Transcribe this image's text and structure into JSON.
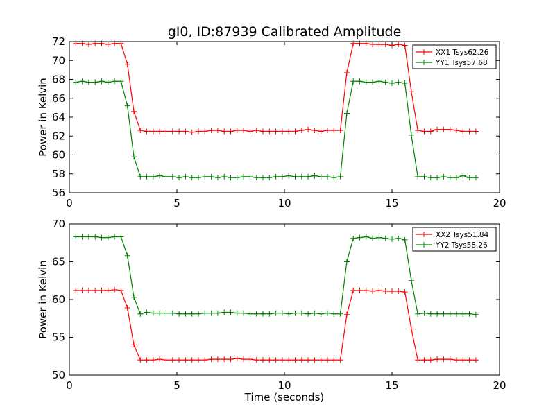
{
  "title": "gI0, ID:87939 Calibrated Amplitude",
  "colors": {
    "xx": "#ff0000",
    "yy": "#008000"
  },
  "chart_data": [
    {
      "type": "line",
      "xlabel": "",
      "ylabel": "Power in Kelvin",
      "xlim": [
        0,
        20
      ],
      "ylim": [
        56,
        72
      ],
      "xticks": [
        0,
        5,
        10,
        15,
        20
      ],
      "yticks": [
        56,
        58,
        60,
        62,
        64,
        66,
        68,
        70,
        72
      ],
      "legend_position": "top-right",
      "grid": false,
      "x": [
        0.3,
        0.6,
        0.9,
        1.2,
        1.5,
        1.8,
        2.1,
        2.4,
        2.7,
        3.0,
        3.3,
        3.6,
        3.9,
        4.2,
        4.5,
        4.8,
        5.1,
        5.4,
        5.7,
        6.0,
        6.3,
        6.6,
        6.9,
        7.2,
        7.5,
        7.8,
        8.1,
        8.4,
        8.7,
        9.0,
        9.3,
        9.6,
        9.9,
        10.2,
        10.5,
        10.8,
        11.1,
        11.4,
        11.7,
        12.0,
        12.3,
        12.6,
        12.9,
        13.2,
        13.5,
        13.8,
        14.1,
        14.4,
        14.7,
        15.0,
        15.3,
        15.6,
        15.9,
        16.2,
        16.5,
        16.8,
        17.1,
        17.4,
        17.7,
        18.0,
        18.3,
        18.6,
        18.9
      ],
      "series": [
        {
          "name": "XX1 Tsys62.26",
          "color": "#ff0000",
          "values": [
            71.8,
            71.8,
            71.7,
            71.8,
            71.8,
            71.7,
            71.8,
            71.8,
            69.6,
            64.6,
            62.6,
            62.5,
            62.5,
            62.5,
            62.5,
            62.5,
            62.5,
            62.5,
            62.4,
            62.5,
            62.5,
            62.6,
            62.6,
            62.5,
            62.5,
            62.6,
            62.6,
            62.5,
            62.6,
            62.5,
            62.5,
            62.5,
            62.5,
            62.5,
            62.5,
            62.6,
            62.7,
            62.6,
            62.5,
            62.6,
            62.6,
            62.6,
            68.7,
            71.8,
            71.8,
            71.8,
            71.7,
            71.7,
            71.7,
            71.6,
            71.7,
            71.6,
            66.7,
            62.6,
            62.5,
            62.5,
            62.7,
            62.7,
            62.7,
            62.6,
            62.5,
            62.5,
            62.5
          ]
        },
        {
          "name": "YY1 Tsys57.68",
          "color": "#008000",
          "values": [
            67.7,
            67.8,
            67.7,
            67.7,
            67.8,
            67.7,
            67.8,
            67.8,
            65.2,
            59.8,
            57.7,
            57.7,
            57.7,
            57.8,
            57.7,
            57.7,
            57.6,
            57.7,
            57.6,
            57.6,
            57.7,
            57.7,
            57.6,
            57.7,
            57.6,
            57.6,
            57.7,
            57.7,
            57.6,
            57.6,
            57.6,
            57.7,
            57.7,
            57.8,
            57.7,
            57.7,
            57.7,
            57.8,
            57.7,
            57.7,
            57.6,
            57.7,
            64.4,
            67.8,
            67.8,
            67.7,
            67.7,
            67.8,
            67.7,
            67.6,
            67.7,
            67.6,
            62.1,
            57.7,
            57.7,
            57.6,
            57.6,
            57.7,
            57.6,
            57.6,
            57.8,
            57.6,
            57.6
          ]
        }
      ]
    },
    {
      "type": "line",
      "xlabel": "Time (seconds)",
      "ylabel": "Power in Kelvin",
      "xlim": [
        0,
        20
      ],
      "ylim": [
        50,
        70
      ],
      "xticks": [
        0,
        5,
        10,
        15,
        20
      ],
      "yticks": [
        50,
        55,
        60,
        65,
        70
      ],
      "legend_position": "top-right",
      "grid": false,
      "x": [
        0.3,
        0.6,
        0.9,
        1.2,
        1.5,
        1.8,
        2.1,
        2.4,
        2.7,
        3.0,
        3.3,
        3.6,
        3.9,
        4.2,
        4.5,
        4.8,
        5.1,
        5.4,
        5.7,
        6.0,
        6.3,
        6.6,
        6.9,
        7.2,
        7.5,
        7.8,
        8.1,
        8.4,
        8.7,
        9.0,
        9.3,
        9.6,
        9.9,
        10.2,
        10.5,
        10.8,
        11.1,
        11.4,
        11.7,
        12.0,
        12.3,
        12.6,
        12.9,
        13.2,
        13.5,
        13.8,
        14.1,
        14.4,
        14.7,
        15.0,
        15.3,
        15.6,
        15.9,
        16.2,
        16.5,
        16.8,
        17.1,
        17.4,
        17.7,
        18.0,
        18.3,
        18.6,
        18.9
      ],
      "series": [
        {
          "name": "XX2 Tsys51.84",
          "color": "#ff0000",
          "values": [
            61.2,
            61.2,
            61.2,
            61.2,
            61.2,
            61.2,
            61.3,
            61.2,
            58.9,
            54.0,
            52.0,
            52.0,
            52.0,
            52.1,
            52.0,
            52.0,
            52.0,
            52.0,
            52.0,
            52.0,
            52.0,
            52.1,
            52.1,
            52.1,
            52.1,
            52.2,
            52.1,
            52.1,
            52.0,
            52.0,
            52.0,
            52.0,
            52.0,
            52.0,
            52.0,
            52.0,
            52.0,
            52.0,
            52.0,
            52.0,
            52.0,
            52.0,
            58.0,
            61.2,
            61.2,
            61.2,
            61.1,
            61.2,
            61.1,
            61.1,
            61.1,
            61.0,
            56.1,
            52.0,
            52.0,
            52.0,
            52.1,
            52.1,
            52.1,
            52.0,
            52.0,
            52.0,
            52.0
          ]
        },
        {
          "name": "YY2 Tsys58.26",
          "color": "#008000",
          "values": [
            68.3,
            68.3,
            68.3,
            68.3,
            68.2,
            68.2,
            68.3,
            68.3,
            65.8,
            60.3,
            58.1,
            58.3,
            58.2,
            58.2,
            58.2,
            58.2,
            58.1,
            58.1,
            58.1,
            58.1,
            58.2,
            58.2,
            58.2,
            58.3,
            58.3,
            58.2,
            58.2,
            58.1,
            58.1,
            58.1,
            58.1,
            58.2,
            58.2,
            58.1,
            58.2,
            58.2,
            58.1,
            58.2,
            58.1,
            58.2,
            58.1,
            58.1,
            65.0,
            68.1,
            68.2,
            68.3,
            68.1,
            68.2,
            68.1,
            68.0,
            68.1,
            67.9,
            62.5,
            58.1,
            58.2,
            58.1,
            58.1,
            58.1,
            58.1,
            58.1,
            58.1,
            58.1,
            58.0
          ]
        }
      ]
    }
  ]
}
